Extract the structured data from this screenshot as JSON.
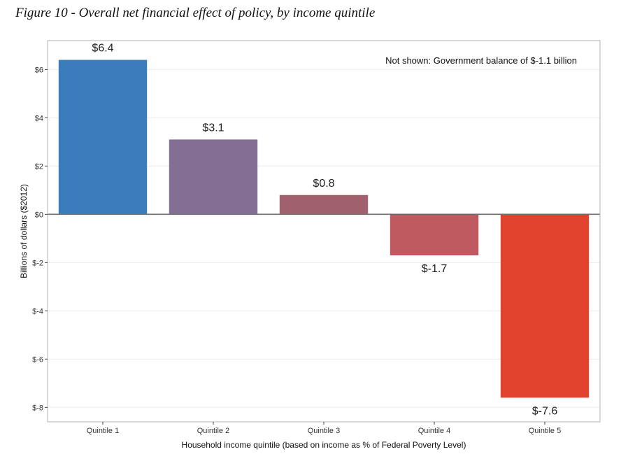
{
  "figure": {
    "title": "Figure 10 - Overall net financial effect of policy, by income quintile"
  },
  "chart_data": {
    "type": "bar",
    "categories": [
      "Quintile 1",
      "Quintile 2",
      "Quintile 3",
      "Quintile 4",
      "Quintile 5"
    ],
    "values": [
      6.4,
      3.1,
      0.8,
      -1.7,
      -7.6
    ],
    "data_labels": [
      "$6.4",
      "$3.1",
      "$0.8",
      "$-1.7",
      "$-7.6"
    ],
    "colors": [
      "#3b7dbb",
      "#826f93",
      "#a0606e",
      "#bf5a60",
      "#e1432e"
    ],
    "ylim": [
      -8.6,
      7.2
    ],
    "yticks": [
      6,
      4,
      2,
      0,
      -2,
      -4,
      -6,
      -8
    ],
    "ytick_labels": [
      "$6",
      "$4",
      "$2",
      "$0",
      "$-2",
      "$-4",
      "$-6",
      "$-8"
    ],
    "xlabel": "Household income quintile (based on income as % of Federal Poverty Level)",
    "ylabel": "Billions of dollars ($2012)",
    "annotation": "Not shown: Government balance of $-1.1 billion",
    "annotation_placement": "top-right",
    "grid": true,
    "legend": false,
    "colors_style": {
      "panel_border": "#b3b3b3",
      "grid_major": "#ebebeb",
      "grid_minor": "#f5f5f5",
      "zero_line": "#6e6e6e"
    }
  }
}
